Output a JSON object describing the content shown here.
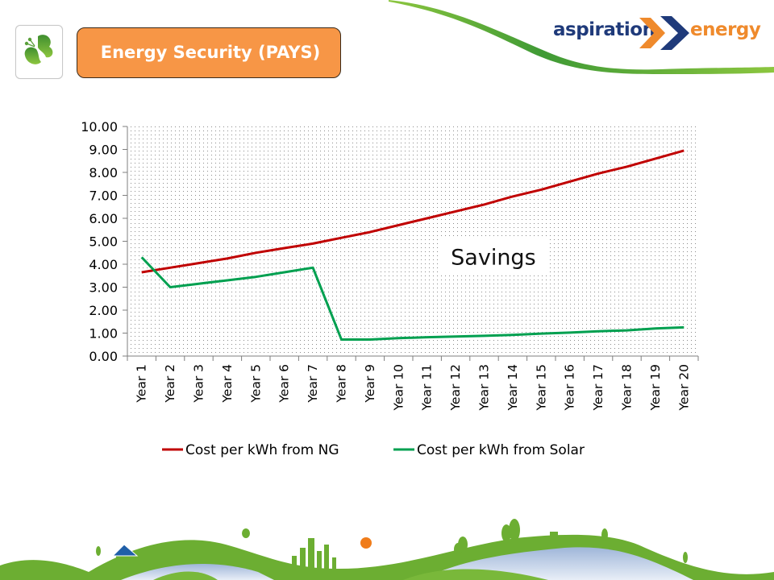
{
  "header": {
    "title": "Energy Security (PAYS)",
    "logo": {
      "word1": "aspiration",
      "word2": "energy",
      "colors": {
        "word1": "#1f3a7a",
        "word2": "#ef8a2c",
        "chevron1": "#ef8a2c",
        "chevron2": "#1f3a7a"
      }
    },
    "icon": "butterfly-icon",
    "title_bg_color": "#f79646"
  },
  "chart_data": {
    "type": "line",
    "title": "",
    "xlabel": "",
    "ylabel": "",
    "ylim": [
      0,
      10
    ],
    "yticks": [
      "0.00",
      "1.00",
      "2.00",
      "3.00",
      "4.00",
      "5.00",
      "6.00",
      "7.00",
      "8.00",
      "9.00",
      "10.00"
    ],
    "ytick_values": [
      0,
      1,
      2,
      3,
      4,
      5,
      6,
      7,
      8,
      9,
      10
    ],
    "categories": [
      "Year 1",
      "Year 2",
      "Year 3",
      "Year 4",
      "Year 5",
      "Year 6",
      "Year 7",
      "Year 8",
      "Year 9",
      "Year 10",
      "Year 11",
      "Year 12",
      "Year 13",
      "Year 14",
      "Year 15",
      "Year 16",
      "Year 17",
      "Year 18",
      "Year 19",
      "Year 20"
    ],
    "series": [
      {
        "name": "Cost per kWh from NG",
        "color": "#c00000",
        "values": [
          3.65,
          3.85,
          4.05,
          4.25,
          4.5,
          4.7,
          4.9,
          5.15,
          5.4,
          5.7,
          6.0,
          6.3,
          6.6,
          6.95,
          7.25,
          7.6,
          7.95,
          8.25,
          8.6,
          8.95
        ]
      },
      {
        "name": "Cost per kWh from Solar",
        "color": "#00a050",
        "values": [
          4.3,
          3.0,
          3.15,
          3.3,
          3.45,
          3.65,
          3.85,
          0.72,
          0.72,
          0.78,
          0.82,
          0.85,
          0.88,
          0.92,
          0.98,
          1.02,
          1.08,
          1.12,
          1.2,
          1.25
        ]
      }
    ],
    "annotations": [
      {
        "text": "Savings",
        "x_category": "Year 14",
        "y": 4.3
      }
    ],
    "grid": false,
    "background_pattern": "dotted",
    "legend": {
      "position": "bottom"
    }
  }
}
